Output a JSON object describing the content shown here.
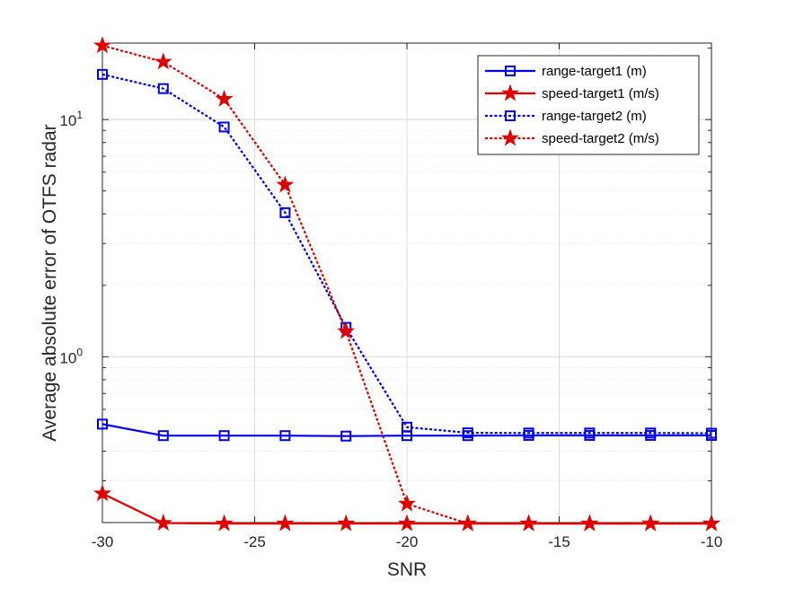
{
  "chart_data": {
    "type": "line",
    "title": "",
    "xlabel": "SNR",
    "ylabel": "Average absolute error of OTFS radar",
    "yscale": "log",
    "xlim": [
      -30,
      -10
    ],
    "ylim": [
      0.2,
      21
    ],
    "x_ticks": [
      -30,
      -25,
      -20,
      -15,
      -10
    ],
    "x_tick_labels": [
      "-30",
      "-25",
      "-20",
      "-15",
      "-10"
    ],
    "y_ticks": [
      1,
      10
    ],
    "y_tick_labels": [
      {
        "base": "10",
        "exp": "0"
      },
      {
        "base": "10",
        "exp": "1"
      }
    ],
    "grid": true,
    "legend_position": "top-right",
    "x": [
      -30,
      -28,
      -26,
      -24,
      -22,
      -20,
      -18,
      -16,
      -14,
      -12,
      -10
    ],
    "series": [
      {
        "name": "range-target1 (m)",
        "color": "#0000ee",
        "style": "solid",
        "marker": "square",
        "values": [
          0.52,
          0.465,
          0.465,
          0.465,
          0.463,
          0.465,
          0.465,
          0.466,
          0.466,
          0.466,
          0.466
        ]
      },
      {
        "name": "speed-target1 (m/s)",
        "color": "#e00000",
        "style": "solid",
        "marker": "star",
        "values": [
          0.265,
          0.199,
          0.198,
          0.198,
          0.198,
          0.198,
          0.198,
          0.198,
          0.198,
          0.198,
          0.198
        ]
      },
      {
        "name": "range-target2 (m)",
        "color": "#0000ee",
        "style": "dotted",
        "marker": "square",
        "values": [
          15.5,
          13.5,
          9.3,
          4.05,
          1.33,
          0.505,
          0.478,
          0.477,
          0.477,
          0.477,
          0.476
        ]
      },
      {
        "name": "speed-target2 (m/s)",
        "color": "#e00000",
        "style": "dotted",
        "marker": "star",
        "values": [
          20.5,
          17.5,
          12.2,
          5.3,
          1.28,
          0.24,
          0.198,
          0.198,
          0.198,
          0.198,
          0.198
        ]
      }
    ]
  }
}
